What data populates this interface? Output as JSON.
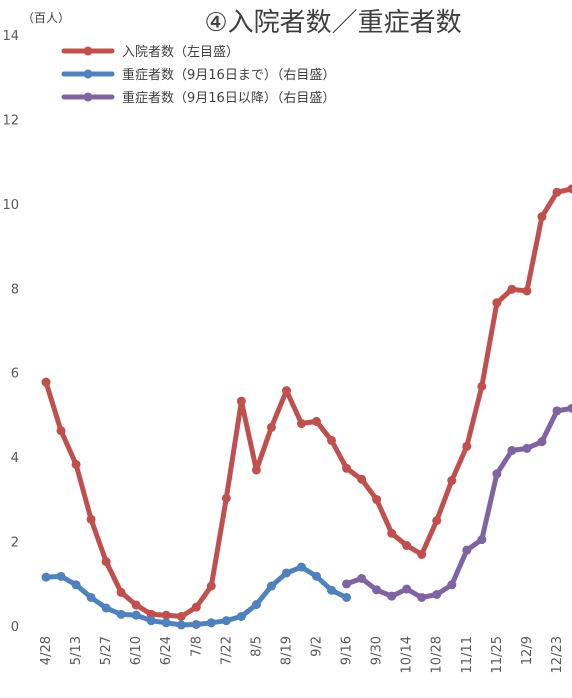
{
  "chart_data": {
    "type": "line",
    "title": "④入院者数／重症者数",
    "ylabel": "（百人）",
    "ylim": [
      0,
      14
    ],
    "yticks": [
      0,
      2,
      4,
      6,
      8,
      10,
      12,
      14
    ],
    "grid": false,
    "legend_position": "top-left",
    "x": [
      "4/28",
      "5/5",
      "5/13",
      "5/20",
      "5/27",
      "6/3",
      "6/10",
      "6/17",
      "6/24",
      "7/1",
      "7/8",
      "7/15",
      "7/22",
      "7/29",
      "8/5",
      "8/12",
      "8/19",
      "8/26",
      "9/2",
      "9/9",
      "9/16",
      "9/23",
      "9/30",
      "10/7",
      "10/14",
      "10/21",
      "10/28",
      "11/4",
      "11/11",
      "11/18",
      "11/25",
      "12/2",
      "12/9",
      "12/16",
      "12/23",
      "12/30"
    ],
    "xtick_labels": [
      "4/28",
      "5/13",
      "5/27",
      "6/10",
      "6/24",
      "7/8",
      "7/22",
      "8/5",
      "8/19",
      "9/2",
      "9/16",
      "9/30",
      "10/14",
      "10/28",
      "11/11",
      "11/25",
      "12/9",
      "12/23"
    ],
    "series": [
      {
        "name": "入院者数（左目盛）",
        "color": "#C0504D",
        "values": [
          5.8,
          4.65,
          3.85,
          2.55,
          1.55,
          0.82,
          0.52,
          0.3,
          0.28,
          0.25,
          0.47,
          0.97,
          3.05,
          5.35,
          3.72,
          4.73,
          5.6,
          4.82,
          4.87,
          4.42,
          3.76,
          3.5,
          3.02,
          2.22,
          1.93,
          1.72,
          2.52,
          3.47,
          4.28,
          5.7,
          7.68,
          8.0,
          7.96,
          9.72,
          10.3,
          10.38
        ]
      },
      {
        "name": "重症者数（9月16日まで）（右目盛）",
        "color": "#4F81BD",
        "values": [
          1.18,
          1.2,
          1.0,
          0.7,
          0.45,
          0.3,
          0.28,
          0.15,
          0.1,
          0.05,
          0.06,
          0.1,
          0.15,
          0.25,
          0.53,
          0.97,
          1.28,
          1.42,
          1.2,
          0.87,
          0.7,
          null,
          null,
          null,
          null,
          null,
          null,
          null,
          null,
          null,
          null,
          null,
          null,
          null,
          null,
          null
        ]
      },
      {
        "name": "重症者数（9月16日以降）（右目盛）",
        "color": "#8064A2",
        "values": [
          null,
          null,
          null,
          null,
          null,
          null,
          null,
          null,
          null,
          null,
          null,
          null,
          null,
          null,
          null,
          null,
          null,
          null,
          null,
          null,
          1.02,
          1.15,
          0.88,
          0.73,
          0.9,
          0.7,
          0.77,
          1.0,
          1.82,
          2.07,
          3.63,
          4.18,
          4.23,
          4.39,
          5.12,
          5.18
        ]
      }
    ]
  }
}
